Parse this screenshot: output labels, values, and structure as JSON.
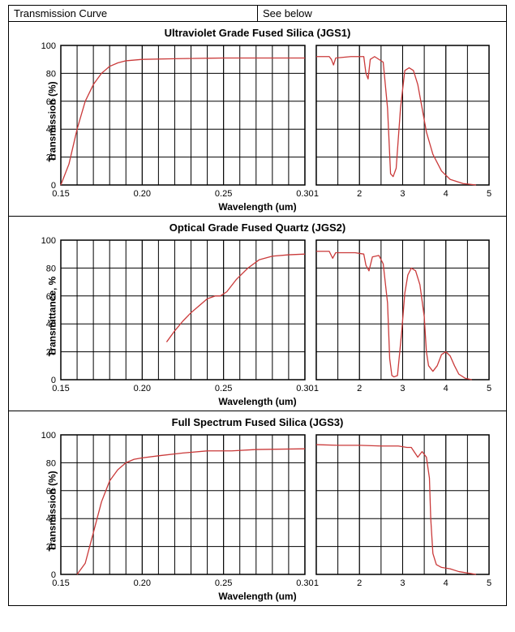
{
  "headerRow": {
    "left": "Transmission Curve",
    "right": "See below"
  },
  "globalStyle": {
    "grid_color": "#000000",
    "axis_color": "#000000",
    "series_color": "#ca3a3a",
    "series_width": 1.3,
    "background": "#ffffff",
    "tick_font_size": 11,
    "title_font_size": 13,
    "label_font_size": 12
  },
  "charts": [
    {
      "id": "jgs1",
      "title": "Ultraviolet Grade Fused Silica (JGS1)",
      "ylabel": "Transmission (%)",
      "xlabel": "Wavelength (um)",
      "ylim": [
        0,
        100
      ],
      "ytick_step": 20,
      "left": {
        "xlim": [
          0.15,
          0.3
        ],
        "xticks": [
          0.15,
          0.2,
          0.25,
          0.3
        ],
        "minor_div": 5,
        "series": [
          {
            "x": 0.15,
            "y": 0
          },
          {
            "x": 0.155,
            "y": 15
          },
          {
            "x": 0.16,
            "y": 40
          },
          {
            "x": 0.165,
            "y": 60
          },
          {
            "x": 0.17,
            "y": 72
          },
          {
            "x": 0.175,
            "y": 80
          },
          {
            "x": 0.18,
            "y": 85
          },
          {
            "x": 0.185,
            "y": 87.5
          },
          {
            "x": 0.19,
            "y": 89
          },
          {
            "x": 0.2,
            "y": 90
          },
          {
            "x": 0.22,
            "y": 90.5
          },
          {
            "x": 0.25,
            "y": 91
          },
          {
            "x": 0.3,
            "y": 91
          }
        ]
      },
      "right": {
        "xlim": [
          1,
          5
        ],
        "xticks": [
          1,
          2,
          3,
          4,
          5
        ],
        "minor_div": 2,
        "series": [
          {
            "x": 1.0,
            "y": 92
          },
          {
            "x": 1.3,
            "y": 92
          },
          {
            "x": 1.35,
            "y": 90
          },
          {
            "x": 1.4,
            "y": 86
          },
          {
            "x": 1.45,
            "y": 91
          },
          {
            "x": 1.8,
            "y": 92
          },
          {
            "x": 2.1,
            "y": 92
          },
          {
            "x": 2.15,
            "y": 80
          },
          {
            "x": 2.2,
            "y": 76
          },
          {
            "x": 2.25,
            "y": 90
          },
          {
            "x": 2.35,
            "y": 92
          },
          {
            "x": 2.55,
            "y": 88
          },
          {
            "x": 2.65,
            "y": 55
          },
          {
            "x": 2.72,
            "y": 8
          },
          {
            "x": 2.78,
            "y": 6
          },
          {
            "x": 2.85,
            "y": 12
          },
          {
            "x": 2.95,
            "y": 55
          },
          {
            "x": 3.05,
            "y": 82
          },
          {
            "x": 3.15,
            "y": 84
          },
          {
            "x": 3.25,
            "y": 82
          },
          {
            "x": 3.35,
            "y": 72
          },
          {
            "x": 3.45,
            "y": 55
          },
          {
            "x": 3.55,
            "y": 38
          },
          {
            "x": 3.7,
            "y": 22
          },
          {
            "x": 3.9,
            "y": 10
          },
          {
            "x": 4.1,
            "y": 4
          },
          {
            "x": 4.4,
            "y": 1
          },
          {
            "x": 4.7,
            "y": 0
          }
        ]
      }
    },
    {
      "id": "jgs2",
      "title": "Optical Grade Fused Quartz  (JGS2)",
      "ylabel": "Transmittance, %",
      "xlabel": "Wavelength (um)",
      "ylim": [
        0,
        100
      ],
      "ytick_step": 20,
      "left": {
        "xlim": [
          0.15,
          0.3
        ],
        "xticks": [
          0.15,
          0.2,
          0.25,
          0.3
        ],
        "minor_div": 5,
        "series": [
          {
            "x": 0.215,
            "y": 27
          },
          {
            "x": 0.22,
            "y": 35
          },
          {
            "x": 0.225,
            "y": 42
          },
          {
            "x": 0.23,
            "y": 48
          },
          {
            "x": 0.235,
            "y": 53
          },
          {
            "x": 0.24,
            "y": 58
          },
          {
            "x": 0.245,
            "y": 60
          },
          {
            "x": 0.248,
            "y": 60
          },
          {
            "x": 0.252,
            "y": 63
          },
          {
            "x": 0.258,
            "y": 72
          },
          {
            "x": 0.265,
            "y": 80
          },
          {
            "x": 0.272,
            "y": 86
          },
          {
            "x": 0.28,
            "y": 88.5
          },
          {
            "x": 0.29,
            "y": 89.5
          },
          {
            "x": 0.3,
            "y": 90
          }
        ]
      },
      "right": {
        "xlim": [
          1,
          5
        ],
        "xticks": [
          1,
          2,
          3,
          4,
          5
        ],
        "minor_div": 2,
        "series": [
          {
            "x": 1.0,
            "y": 92
          },
          {
            "x": 1.3,
            "y": 92
          },
          {
            "x": 1.38,
            "y": 87
          },
          {
            "x": 1.45,
            "y": 91
          },
          {
            "x": 1.9,
            "y": 91
          },
          {
            "x": 2.1,
            "y": 90
          },
          {
            "x": 2.15,
            "y": 82
          },
          {
            "x": 2.22,
            "y": 78
          },
          {
            "x": 2.3,
            "y": 88
          },
          {
            "x": 2.45,
            "y": 89
          },
          {
            "x": 2.55,
            "y": 83
          },
          {
            "x": 2.65,
            "y": 55
          },
          {
            "x": 2.7,
            "y": 15
          },
          {
            "x": 2.75,
            "y": 3
          },
          {
            "x": 2.8,
            "y": 2
          },
          {
            "x": 2.88,
            "y": 3
          },
          {
            "x": 2.98,
            "y": 35
          },
          {
            "x": 3.05,
            "y": 62
          },
          {
            "x": 3.12,
            "y": 75
          },
          {
            "x": 3.2,
            "y": 80
          },
          {
            "x": 3.3,
            "y": 78
          },
          {
            "x": 3.4,
            "y": 68
          },
          {
            "x": 3.5,
            "y": 45
          },
          {
            "x": 3.55,
            "y": 20
          },
          {
            "x": 3.6,
            "y": 10
          },
          {
            "x": 3.7,
            "y": 6
          },
          {
            "x": 3.8,
            "y": 10
          },
          {
            "x": 3.9,
            "y": 18
          },
          {
            "x": 4.0,
            "y": 20
          },
          {
            "x": 4.1,
            "y": 17
          },
          {
            "x": 4.2,
            "y": 10
          },
          {
            "x": 4.3,
            "y": 4
          },
          {
            "x": 4.45,
            "y": 1
          },
          {
            "x": 4.6,
            "y": 0
          }
        ]
      }
    },
    {
      "id": "jgs3",
      "title": "Full Spectrum Fused Silica (JGS3)",
      "ylabel": "Transmission (%)",
      "xlabel": "Wavelength (um)",
      "ylim": [
        0,
        100
      ],
      "ytick_step": 20,
      "left": {
        "xlim": [
          0.15,
          0.3
        ],
        "xticks": [
          0.15,
          0.2,
          0.25,
          0.3
        ],
        "minor_div": 5,
        "series": [
          {
            "x": 0.16,
            "y": 0
          },
          {
            "x": 0.165,
            "y": 8
          },
          {
            "x": 0.17,
            "y": 30
          },
          {
            "x": 0.175,
            "y": 52
          },
          {
            "x": 0.18,
            "y": 67
          },
          {
            "x": 0.185,
            "y": 75
          },
          {
            "x": 0.19,
            "y": 80
          },
          {
            "x": 0.195,
            "y": 82.5
          },
          {
            "x": 0.2,
            "y": 83.5
          },
          {
            "x": 0.21,
            "y": 85
          },
          {
            "x": 0.225,
            "y": 87
          },
          {
            "x": 0.24,
            "y": 88.5
          },
          {
            "x": 0.255,
            "y": 88.5
          },
          {
            "x": 0.27,
            "y": 89.5
          },
          {
            "x": 0.3,
            "y": 90
          }
        ]
      },
      "right": {
        "xlim": [
          1,
          5
        ],
        "xticks": [
          1,
          2,
          3,
          4,
          5
        ],
        "minor_div": 2,
        "series": [
          {
            "x": 1.0,
            "y": 93
          },
          {
            "x": 1.5,
            "y": 92.5
          },
          {
            "x": 2.0,
            "y": 92.5
          },
          {
            "x": 2.5,
            "y": 92
          },
          {
            "x": 2.9,
            "y": 92
          },
          {
            "x": 3.1,
            "y": 91
          },
          {
            "x": 3.2,
            "y": 91
          },
          {
            "x": 3.35,
            "y": 84
          },
          {
            "x": 3.45,
            "y": 88
          },
          {
            "x": 3.55,
            "y": 84
          },
          {
            "x": 3.62,
            "y": 69
          },
          {
            "x": 3.65,
            "y": 40
          },
          {
            "x": 3.7,
            "y": 15
          },
          {
            "x": 3.78,
            "y": 7
          },
          {
            "x": 3.9,
            "y": 5
          },
          {
            "x": 4.1,
            "y": 4
          },
          {
            "x": 4.3,
            "y": 2
          },
          {
            "x": 4.5,
            "y": 1
          },
          {
            "x": 4.7,
            "y": 0
          }
        ]
      }
    }
  ]
}
